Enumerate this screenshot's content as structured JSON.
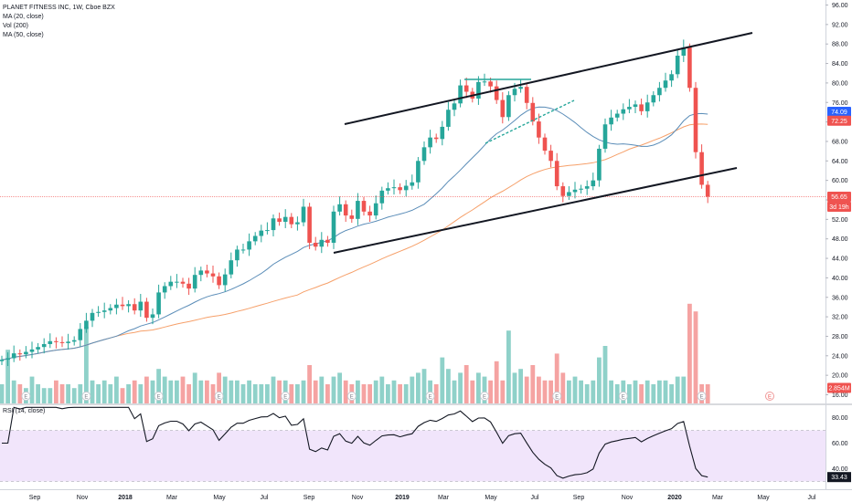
{
  "legend": {
    "symbol_line": "PLANET FITNESS INC, 1W, Cboe BZX",
    "ma20_label": "MA (20, close)",
    "vol_label": "Vol (200)",
    "ma50_label": "MA (50, close)"
  },
  "rsi": {
    "label": "RSI (14, close)",
    "ticks": [
      "80.00",
      "60.00",
      "40.00"
    ],
    "last_badge": "33.43",
    "band": [
      30,
      70
    ]
  },
  "badges": {
    "ma20_value": "74.09",
    "ma50_value": "72.25",
    "price_value": "56.65",
    "countdown": "3d 19h",
    "volume_value": "2.854M"
  },
  "colors": {
    "up": "#26a69a",
    "down": "#ef5350",
    "up_vol": "#8fd1c9",
    "down_vol": "#f5a3a2",
    "ma20": "#5b8db8",
    "ma50": "#f6a06a",
    "rsi_band": "#f1e5fb"
  },
  "chart_data": {
    "type": "candlestick",
    "title": "PLANET FITNESS INC, 1W, Cboe BZX",
    "y_ticks": [
      "96.00",
      "92.00",
      "88.00",
      "84.00",
      "80.00",
      "76.00",
      "72.00",
      "68.00",
      "64.00",
      "60.00",
      "56.00",
      "52.00",
      "48.00",
      "44.00",
      "40.00",
      "36.00",
      "32.00",
      "28.00",
      "24.00",
      "20.00",
      "16.00"
    ],
    "ylim": [
      16,
      96
    ],
    "x_ticks": [
      "Sep",
      "Nov",
      "2018",
      "Mar",
      "May",
      "Jul",
      "Sep",
      "Nov",
      "2019",
      "Mar",
      "May",
      "Jul",
      "Sep",
      "Nov",
      "2020",
      "Mar",
      "May",
      "Jul"
    ],
    "closes": [
      23.2,
      23.5,
      24.5,
      24.3,
      24.8,
      25.3,
      25.8,
      26.4,
      27.0,
      26.8,
      26.6,
      26.9,
      27.2,
      29.5,
      31.2,
      32.8,
      33.0,
      33.3,
      33.8,
      34.5,
      34.2,
      34.6,
      33.3,
      35.1,
      31.8,
      32.5,
      37.0,
      38.3,
      39.2,
      39.2,
      38.8,
      37.8,
      40.6,
      41.5,
      40.9,
      40.3,
      38.5,
      40.7,
      43.6,
      45.8,
      45.8,
      47.5,
      48.6,
      49.7,
      49.8,
      52.2,
      51.5,
      52.5,
      51.0,
      51.4,
      54.6,
      47.2,
      46.4,
      47.8,
      47.2,
      53.6,
      55.1,
      52.8,
      52.1,
      55.8,
      53.6,
      52.8,
      55.3,
      57.9,
      58.4,
      58.6,
      58.0,
      58.9,
      59.6,
      64.0,
      66.8,
      68.8,
      68.5,
      71.0,
      74.5,
      75.8,
      79.5,
      78.2,
      76.8,
      80.2,
      80.3,
      79.3,
      76.5,
      73.0,
      77.5,
      78.8,
      79.2,
      75.9,
      72.1,
      68.8,
      66.1,
      64.0,
      58.8,
      56.8,
      57.6,
      58.1,
      58.3,
      58.8,
      60.0,
      66.5,
      71.5,
      72.9,
      73.7,
      74.6,
      75.1,
      75.6,
      74.2,
      76.0,
      77.5,
      79.0,
      80.5,
      81.8,
      85.6,
      87.3,
      79.0,
      65.8,
      59.1,
      56.65
    ],
    "ma20_last": 74.09,
    "ma50_last": 72.25,
    "last_close": 56.65,
    "volume_last": "2.854M",
    "rsi_ylim": [
      30,
      88
    ],
    "rsi_last": 33.43,
    "trendlines": [
      {
        "from": [
          "channel upper start",
          77.0
        ],
        "to": [
          "channel upper end",
          90.0
        ]
      },
      {
        "from": [
          "channel lower start",
          45.0
        ],
        "to": [
          "channel lower end",
          62.5
        ]
      }
    ]
  }
}
